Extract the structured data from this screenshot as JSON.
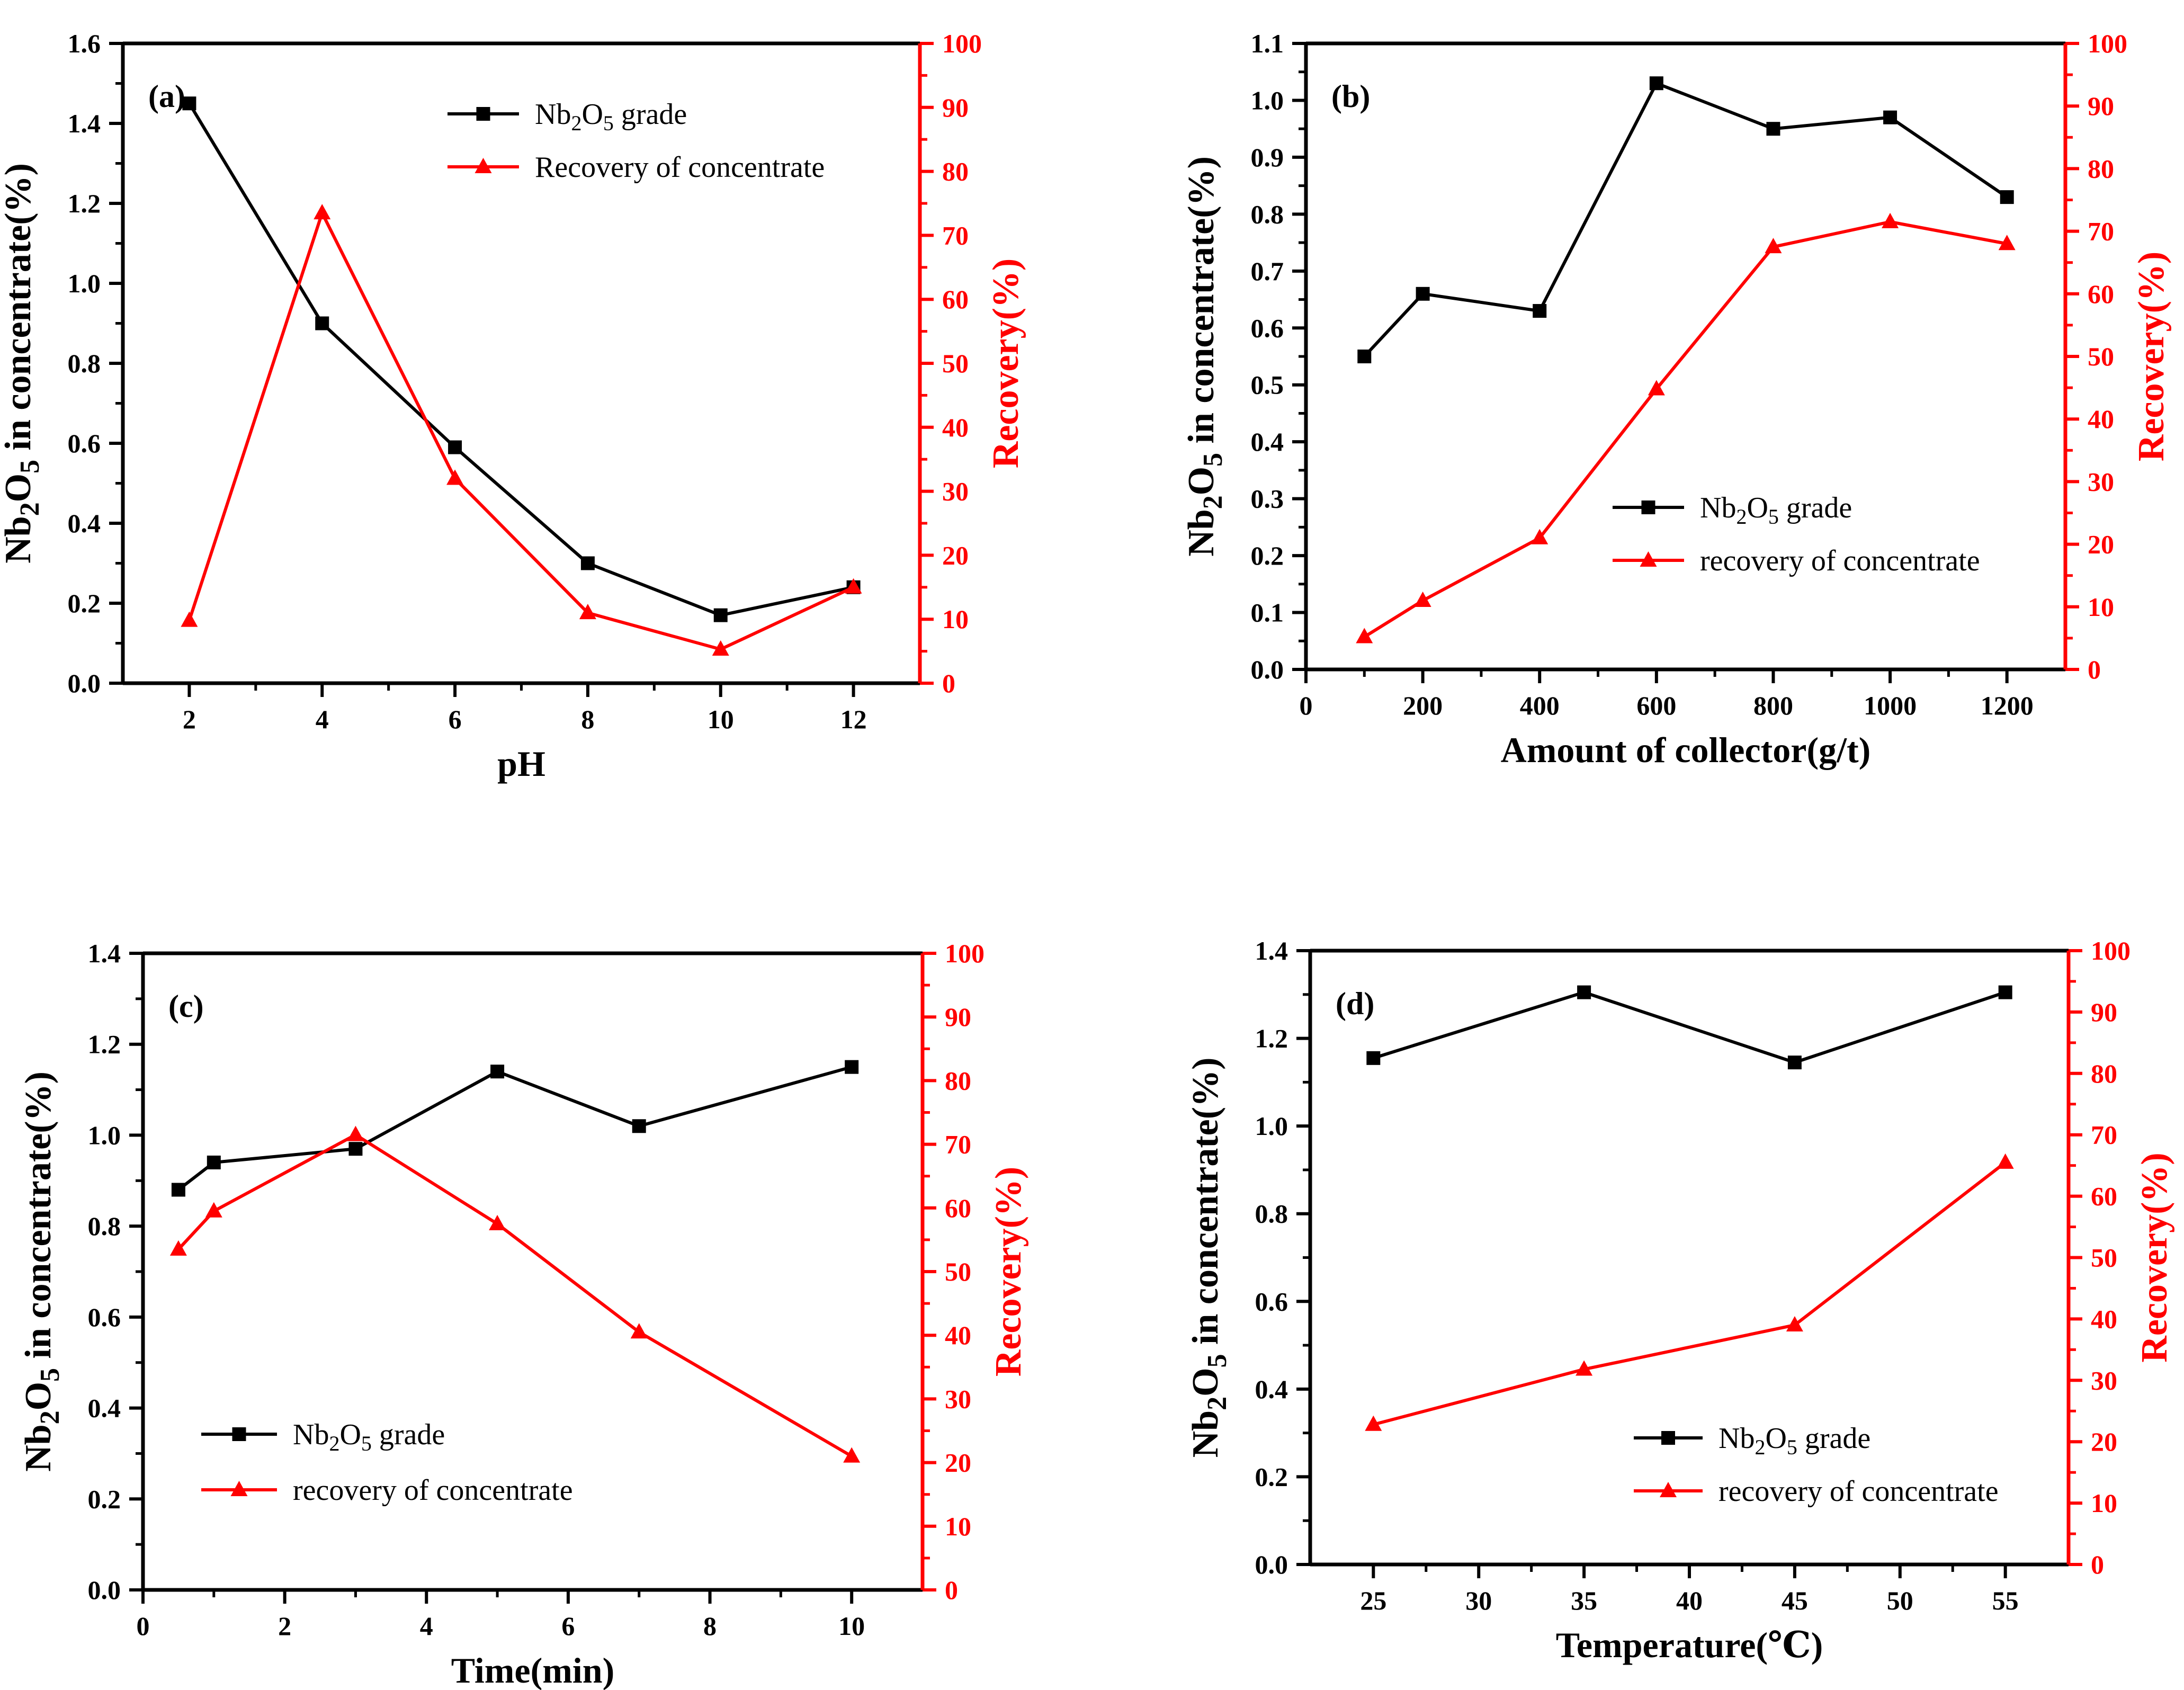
{
  "colors": {
    "grade": "#000000",
    "recovery": "#ff0000",
    "axis": "#000000"
  },
  "chart_data": [
    {
      "panel_label": "(a)",
      "type": "line",
      "xlabel": "pH",
      "ylabel_left": "Nb2O5 in concentrate(%)",
      "ylabel_right": "Recovery(%)",
      "xlim": [
        1,
        13
      ],
      "xticks": [
        2,
        4,
        6,
        8,
        10,
        12
      ],
      "ylim_left": [
        0.0,
        1.6
      ],
      "yticks_left": [
        "0.0",
        "0.2",
        "0.4",
        "0.6",
        "0.8",
        "1.0",
        "1.2",
        "1.4",
        "1.6"
      ],
      "ylim_right": [
        0,
        100
      ],
      "yticks_right": [
        "0",
        "10",
        "20",
        "30",
        "40",
        "50",
        "60",
        "70",
        "80",
        "90",
        "100"
      ],
      "legend_position": "top-right",
      "series": [
        {
          "name": "Nb2O5 grade",
          "axis": "left",
          "marker": "square",
          "x": [
            2,
            4,
            6,
            8,
            10,
            12
          ],
          "y": [
            1.45,
            0.9,
            0.59,
            0.3,
            0.17,
            0.24
          ]
        },
        {
          "name": "Recovery of concentrate",
          "axis": "right",
          "marker": "triangle",
          "x": [
            2,
            4,
            6,
            8,
            10,
            12
          ],
          "y": [
            9.8,
            73.5,
            32.0,
            11.0,
            5.3,
            15.0
          ]
        }
      ]
    },
    {
      "panel_label": "(b)",
      "type": "line",
      "xlabel": "Amount of collector(g/t)",
      "ylabel_left": "Nb2O5 in concentrate(%)",
      "ylabel_right": "Recovery(%)",
      "xlim": [
        0,
        1300
      ],
      "xticks": [
        0,
        200,
        400,
        600,
        800,
        1000,
        1200
      ],
      "ylim_left": [
        0.0,
        1.1
      ],
      "yticks_left": [
        "0.0",
        "0.1",
        "0.2",
        "0.3",
        "0.4",
        "0.5",
        "0.6",
        "0.7",
        "0.8",
        "0.9",
        "1.0",
        "1.1"
      ],
      "ylim_right": [
        0,
        100
      ],
      "yticks_right": [
        "0",
        "10",
        "20",
        "30",
        "40",
        "50",
        "60",
        "70",
        "80",
        "90",
        "100"
      ],
      "legend_position": "lower-right",
      "series": [
        {
          "name": "Nb2O5 grade",
          "axis": "left",
          "marker": "square",
          "x": [
            100,
            200,
            400,
            600,
            800,
            1000,
            1200
          ],
          "y": [
            0.55,
            0.66,
            0.63,
            1.03,
            0.95,
            0.97,
            0.83
          ]
        },
        {
          "name": "recovery of concentrate",
          "axis": "right",
          "marker": "triangle",
          "x": [
            100,
            200,
            400,
            600,
            800,
            1000,
            1200
          ],
          "y": [
            5.2,
            11.0,
            21.0,
            44.8,
            67.5,
            71.5,
            68.0
          ]
        }
      ]
    },
    {
      "panel_label": "(c)",
      "type": "line",
      "xlabel": "Time(min)",
      "ylabel_left": "Nb2O5 in concentrate(%)",
      "ylabel_right": "Recovery(%)",
      "xlim": [
        0,
        11
      ],
      "xticks": [
        0,
        2,
        4,
        6,
        8,
        10
      ],
      "ylim_left": [
        0.0,
        1.4
      ],
      "yticks_left": [
        "0.0",
        "0.2",
        "0.4",
        "0.6",
        "0.8",
        "1.0",
        "1.2",
        "1.4"
      ],
      "ylim_right": [
        0,
        100
      ],
      "yticks_right": [
        "0",
        "10",
        "20",
        "30",
        "40",
        "50",
        "60",
        "70",
        "80",
        "90",
        "100"
      ],
      "legend_position": "lower-left",
      "series": [
        {
          "name": "Nb2O5 grade",
          "axis": "left",
          "marker": "square",
          "x": [
            0.5,
            1,
            3,
            5,
            7,
            10
          ],
          "y": [
            0.88,
            0.94,
            0.97,
            1.14,
            1.02,
            1.15
          ]
        },
        {
          "name": "recovery of concentrate",
          "axis": "right",
          "marker": "triangle",
          "x": [
            0.5,
            1,
            3,
            5,
            7,
            10
          ],
          "y": [
            53.5,
            59.5,
            71.5,
            57.5,
            40.5,
            21.0
          ]
        }
      ]
    },
    {
      "panel_label": "(d)",
      "type": "line",
      "xlabel": "Temperature(℃)",
      "ylabel_left": "Nb2O5 in concentrate(%)",
      "ylabel_right": "Recovery(%)",
      "xlim": [
        22,
        58
      ],
      "xticks": [
        25,
        30,
        35,
        40,
        45,
        50,
        55
      ],
      "ylim_left": [
        0.0,
        1.4
      ],
      "yticks_left": [
        "0.0",
        "0.2",
        "0.4",
        "0.6",
        "0.8",
        "1.0",
        "1.2",
        "1.4"
      ],
      "ylim_right": [
        0,
        100
      ],
      "yticks_right": [
        "0",
        "10",
        "20",
        "30",
        "40",
        "50",
        "60",
        "70",
        "80",
        "90",
        "100"
      ],
      "legend_position": "lower-right",
      "series": [
        {
          "name": "Nb2O5 grade",
          "axis": "left",
          "marker": "square",
          "x": [
            25,
            35,
            45,
            55
          ],
          "y": [
            1.155,
            1.305,
            1.145,
            1.305
          ]
        },
        {
          "name": "recovery of concentrate",
          "axis": "right",
          "marker": "triangle",
          "x": [
            25,
            35,
            45,
            55
          ],
          "y": [
            22.8,
            31.8,
            39.0,
            65.5
          ]
        }
      ]
    }
  ]
}
